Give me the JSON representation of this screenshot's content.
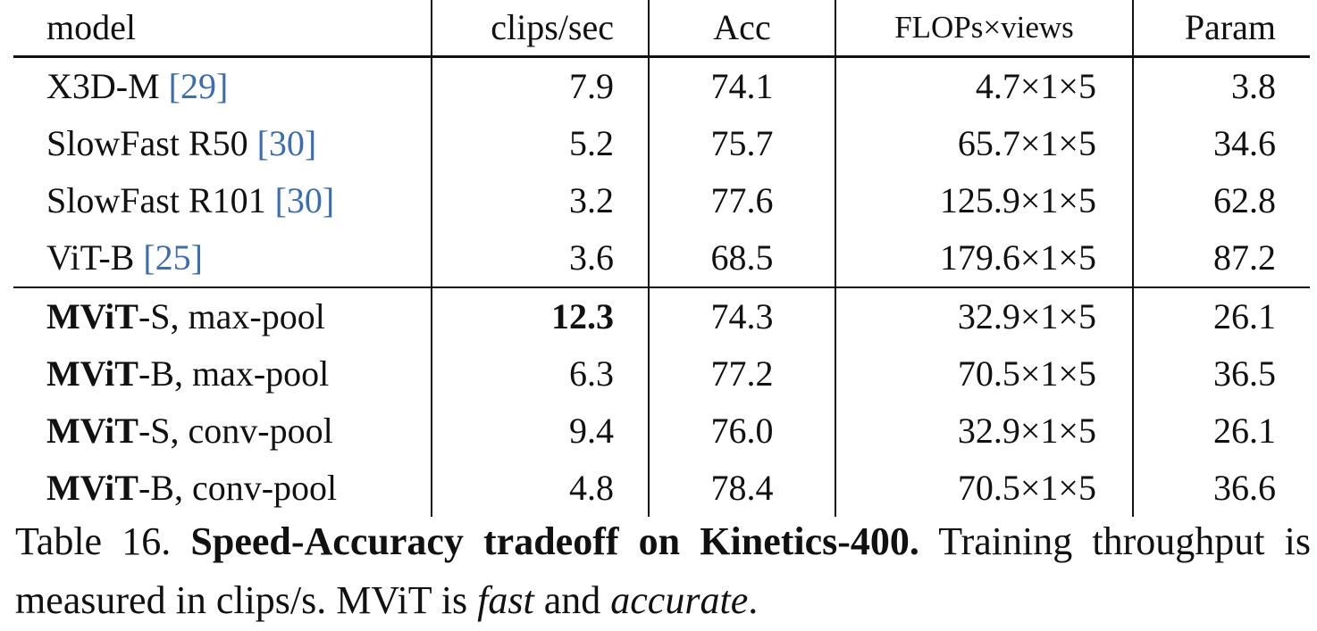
{
  "table": {
    "columns": [
      "model",
      "clips/sec",
      "Acc",
      "FLOPs×views",
      "Param"
    ],
    "rows": [
      [
        {
          "name": "X3D-M",
          "cite": "[29]"
        },
        {
          "text": "7.9"
        },
        {
          "text": "74.1"
        },
        {
          "text": "4.7×1×5"
        },
        {
          "text": "3.8"
        }
      ],
      [
        {
          "name": "SlowFast R50",
          "cite": "[30]"
        },
        {
          "text": "5.2"
        },
        {
          "text": "75.7"
        },
        {
          "text": "65.7×1×5"
        },
        {
          "text": "34.6"
        }
      ],
      [
        {
          "name": "SlowFast R101",
          "cite": "[30]"
        },
        {
          "text": "3.2"
        },
        {
          "text": "77.6"
        },
        {
          "text": "125.9×1×5"
        },
        {
          "text": "62.8"
        }
      ],
      [
        {
          "name": "ViT-B",
          "cite": "[25]"
        },
        {
          "text": "3.6"
        },
        {
          "text": "68.5"
        },
        {
          "text": "179.6×1×5"
        },
        {
          "text": "87.2"
        }
      ],
      [
        {
          "bold": "MViT",
          "name": "-S, max-pool"
        },
        {
          "text": "12.3",
          "bold": true
        },
        {
          "text": "74.3"
        },
        {
          "text": "32.9×1×5"
        },
        {
          "text": "26.1"
        }
      ],
      [
        {
          "bold": "MViT",
          "name": "-B, max-pool"
        },
        {
          "text": "6.3"
        },
        {
          "text": "77.2"
        },
        {
          "text": "70.5×1×5"
        },
        {
          "text": "36.5"
        }
      ],
      [
        {
          "bold": "MViT",
          "name": "-S, conv-pool"
        },
        {
          "text": "9.4"
        },
        {
          "text": "76.0"
        },
        {
          "text": "32.9×1×5"
        },
        {
          "text": "26.1"
        }
      ],
      [
        {
          "bold": "MViT",
          "name": "-B, conv-pool"
        },
        {
          "text": "4.8"
        },
        {
          "text": "78.4"
        },
        {
          "text": "70.5×1×5"
        },
        {
          "text": "36.6"
        }
      ]
    ],
    "midrule_after": 3
  },
  "caption": [
    {
      "text": "Table 16. "
    },
    {
      "text": "Speed-Accuracy tradeoff on Kinetics-400.",
      "style": "bold"
    },
    {
      "text": "   Training throughput is measured in clips/s. MViT is "
    },
    {
      "text": "fast",
      "style": "italic"
    },
    {
      "text": " and "
    },
    {
      "text": "accurate",
      "style": "italic"
    },
    {
      "text": "."
    }
  ]
}
